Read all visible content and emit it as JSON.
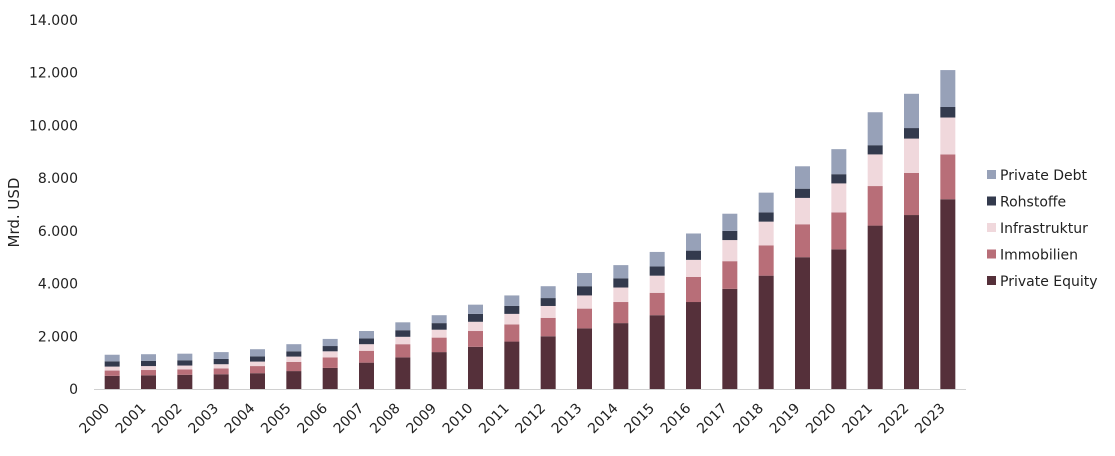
{
  "chart_data": {
    "type": "bar",
    "stacked": true,
    "title": "",
    "xlabel": "",
    "ylabel": "Mrd. USD",
    "ylim": [
      0,
      14000
    ],
    "yticks": [
      0,
      2000,
      4000,
      6000,
      8000,
      10000,
      12000,
      14000
    ],
    "ytick_labels": [
      "0",
      "2.000",
      "4.000",
      "6.000",
      "8.000",
      "10.000",
      "12.000",
      "14.000"
    ],
    "grid": false,
    "legend_position": "right",
    "categories": [
      "2000",
      "2001",
      "2002",
      "2003",
      "2004",
      "2005",
      "2006",
      "2007",
      "2008",
      "2009",
      "2010",
      "2011",
      "2012",
      "2013",
      "2014",
      "2015",
      "2016",
      "2017",
      "2018",
      "2019",
      "2020",
      "2021",
      "2022",
      "2023"
    ],
    "series": [
      {
        "name": "Private Equity",
        "color": "#55303a",
        "values": [
          500,
          520,
          540,
          560,
          600,
          680,
          800,
          1000,
          1200,
          1400,
          1600,
          1800,
          2000,
          2300,
          2500,
          2800,
          3300,
          3800,
          4300,
          5000,
          5300,
          6200,
          6600,
          7200
        ]
      },
      {
        "name": "Immobilien",
        "color": "#b86e78",
        "values": [
          200,
          200,
          200,
          220,
          270,
          350,
          400,
          450,
          500,
          550,
          600,
          650,
          700,
          750,
          800,
          850,
          950,
          1050,
          1150,
          1250,
          1400,
          1500,
          1600,
          1700
        ]
      },
      {
        "name": "Infrastruktur",
        "color": "#f0d8dc",
        "values": [
          150,
          150,
          150,
          160,
          170,
          200,
          230,
          250,
          280,
          300,
          350,
          400,
          450,
          500,
          550,
          650,
          650,
          800,
          900,
          1000,
          1100,
          1200,
          1300,
          1400
        ]
      },
      {
        "name": "Rohstoffe",
        "color": "#333a4d",
        "values": [
          200,
          200,
          200,
          200,
          200,
          200,
          200,
          220,
          250,
          250,
          300,
          300,
          300,
          350,
          350,
          350,
          350,
          350,
          350,
          350,
          350,
          350,
          400,
          400
        ]
      },
      {
        "name": "Private Debt",
        "color": "#97a1b8",
        "values": [
          250,
          250,
          250,
          260,
          270,
          270,
          270,
          280,
          300,
          300,
          350,
          400,
          450,
          500,
          500,
          550,
          650,
          650,
          750,
          850,
          950,
          1250,
          1300,
          1400
        ]
      }
    ],
    "legend_order": [
      "Private Debt",
      "Rohstoffe",
      "Infrastruktur",
      "Immobilien",
      "Private Equity"
    ]
  }
}
